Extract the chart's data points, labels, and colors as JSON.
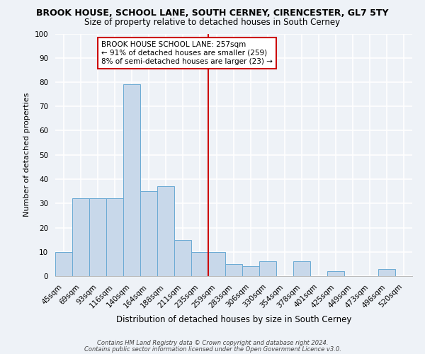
{
  "title1": "BROOK HOUSE, SCHOOL LANE, SOUTH CERNEY, CIRENCESTER, GL7 5TY",
  "title2": "Size of property relative to detached houses in South Cerney",
  "xlabel": "Distribution of detached houses by size in South Cerney",
  "ylabel": "Number of detached properties",
  "footnote1": "Contains HM Land Registry data © Crown copyright and database right 2024.",
  "footnote2": "Contains public sector information licensed under the Open Government Licence v3.0.",
  "bin_labels": [
    "45sqm",
    "69sqm",
    "93sqm",
    "116sqm",
    "140sqm",
    "164sqm",
    "188sqm",
    "211sqm",
    "235sqm",
    "259sqm",
    "283sqm",
    "306sqm",
    "330sqm",
    "354sqm",
    "378sqm",
    "401sqm",
    "425sqm",
    "449sqm",
    "473sqm",
    "496sqm",
    "520sqm"
  ],
  "bar_heights": [
    10,
    32,
    32,
    32,
    79,
    35,
    37,
    15,
    10,
    10,
    5,
    4,
    6,
    0,
    6,
    0,
    2,
    0,
    0,
    3,
    0
  ],
  "bar_color": "#c8d8ea",
  "bar_edge_color": "#6aaad4",
  "vline_x_index": 9,
  "vline_color": "#cc0000",
  "annotation_title": "BROOK HOUSE SCHOOL LANE: 257sqm",
  "annotation_line1": "← 91% of detached houses are smaller (259)",
  "annotation_line2": "8% of semi-detached houses are larger (23) →",
  "annotation_box_color": "#ffffff",
  "annotation_box_edge": "#cc0000",
  "ylim": [
    0,
    100
  ],
  "yticks": [
    0,
    10,
    20,
    30,
    40,
    50,
    60,
    70,
    80,
    90,
    100
  ],
  "bg_color": "#eef2f7",
  "grid_color": "#ffffff",
  "title1_fontsize": 9.0,
  "title2_fontsize": 8.5,
  "xlabel_fontsize": 8.5,
  "ylabel_fontsize": 8.0,
  "tick_fontsize": 7.5,
  "annot_fontsize": 7.5,
  "footnote_fontsize": 6.0
}
